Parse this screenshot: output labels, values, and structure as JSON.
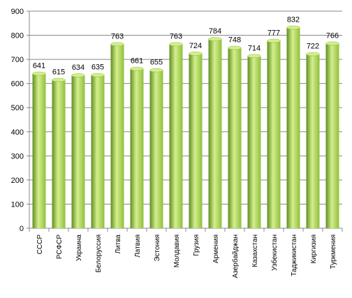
{
  "chart_data": {
    "type": "bar",
    "categories": [
      "СССР",
      "РСФСР",
      "Украина",
      "Белоруссия",
      "Литва",
      "Латвия",
      "Эстония",
      "Молдавия",
      "Грузия",
      "Армения",
      "Азербайджан",
      "Казахстан",
      "Узбекистан",
      "Таджикистан",
      "Киргизия",
      "Туркмения"
    ],
    "values": [
      641,
      615,
      634,
      635,
      763,
      661,
      655,
      763,
      724,
      784,
      748,
      714,
      777,
      832,
      722,
      766
    ],
    "value_labels": [
      "641",
      "615",
      "634",
      "635",
      "763",
      "661",
      "655",
      "763",
      "724",
      "784",
      "748",
      "714",
      "777",
      "832",
      "722",
      "766"
    ],
    "y_ticks": [
      "0",
      "100",
      "200",
      "300",
      "400",
      "500",
      "600",
      "700",
      "800",
      "900"
    ],
    "ylim": [
      0,
      900
    ],
    "grid": true,
    "bar_color": "#8fbf3a",
    "bar_color_light": "#d4ef8f",
    "bar_color_dark": "#5f8f1e",
    "grid_color": "#888888",
    "title": "",
    "xlabel": "",
    "ylabel": ""
  }
}
